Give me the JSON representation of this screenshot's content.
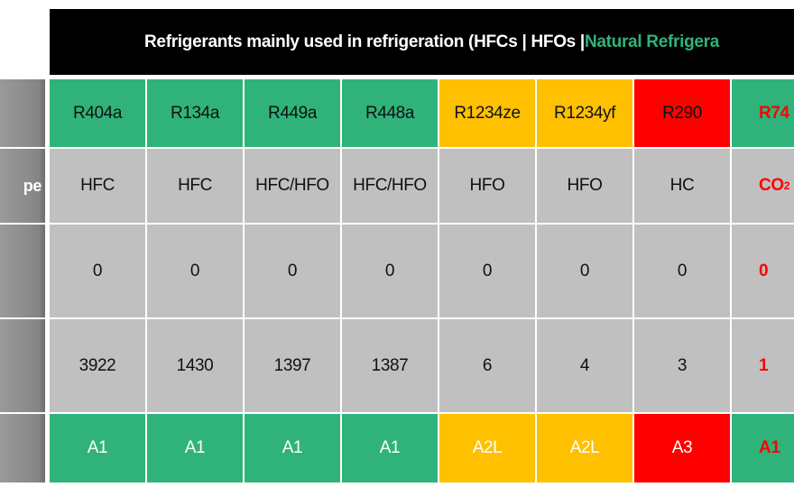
{
  "title": {
    "main": "Refrigerants mainly used in refrigeration (HFCs | HFOs | ",
    "highlight": "Natural Refrigera"
  },
  "row_header_fragment": "pe",
  "columns": [
    {
      "name": "R404a",
      "type": "HFC",
      "odp": 0,
      "gwp": 3922,
      "safety": "A1",
      "color": "#2fb37b"
    },
    {
      "name": "R134a",
      "type": "HFC",
      "odp": 0,
      "gwp": 1430,
      "safety": "A1",
      "color": "#2fb37b"
    },
    {
      "name": "R449a",
      "type": "HFC/HFO",
      "odp": 0,
      "gwp": 1397,
      "safety": "A1",
      "color": "#2fb37b"
    },
    {
      "name": "R448a",
      "type": "HFC/HFO",
      "odp": 0,
      "gwp": 1387,
      "safety": "A1",
      "color": "#2fb37b"
    },
    {
      "name": "R1234ze",
      "type": "HFO",
      "odp": 0,
      "gwp": 6,
      "safety": "A2L",
      "color": "#ffc000"
    },
    {
      "name": "R1234yf",
      "type": "HFO",
      "odp": 0,
      "gwp": 4,
      "safety": "A2L",
      "color": "#ffc000"
    },
    {
      "name": "R290",
      "type": "HC",
      "odp": 0,
      "gwp": 3,
      "safety": "A3",
      "color": "#ff0000"
    },
    {
      "name": "R74",
      "type": "CO",
      "type_subscript": "2",
      "odp": 0,
      "gwp": 1,
      "safety": "A1",
      "color": "#2fb37b",
      "text_color": "#ff0000"
    }
  ]
}
